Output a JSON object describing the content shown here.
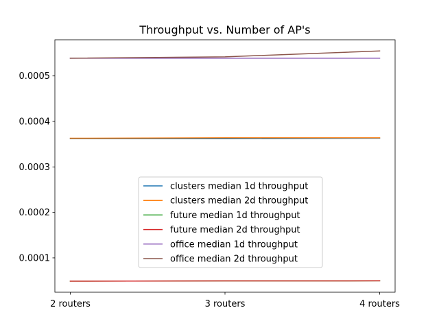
{
  "chart_data": {
    "type": "line",
    "title": "Throughput vs. Number of AP's",
    "xlabel": "",
    "ylabel": "",
    "categories": [
      "2 routers",
      "3 routers",
      "4 routers"
    ],
    "ylim": [
      2.45e-05,
      0.0005795
    ],
    "yticks": [
      0.0001,
      0.0002,
      0.0003,
      0.0004,
      0.0005
    ],
    "ytick_labels": [
      "0.0001",
      "0.0002",
      "0.0003",
      "0.0004",
      "0.0005"
    ],
    "grid": false,
    "legend": {
      "position": "lower-center"
    },
    "series": [
      {
        "name": "clusters median 1d throughput",
        "color": "#1f77b4",
        "values": [
          0.000362,
          0.000362,
          0.000363
        ]
      },
      {
        "name": "clusters median 2d throughput",
        "color": "#ff7f0e",
        "values": [
          0.000363,
          0.000364,
          0.000364
        ]
      },
      {
        "name": "future median 1d throughput",
        "color": "#2ca02c",
        "values": [
          4.88e-05,
          4.93e-05,
          4.95e-05
        ]
      },
      {
        "name": "future median 2d throughput",
        "color": "#d62728",
        "values": [
          4.88e-05,
          4.93e-05,
          4.95e-05
        ]
      },
      {
        "name": "office median 1d throughput",
        "color": "#9467bd",
        "values": [
          0.000539,
          0.000539,
          0.000539
        ]
      },
      {
        "name": "office median 2d throughput",
        "color": "#8c564b",
        "values": [
          0.000539,
          0.000542,
          0.000555
        ]
      }
    ]
  }
}
